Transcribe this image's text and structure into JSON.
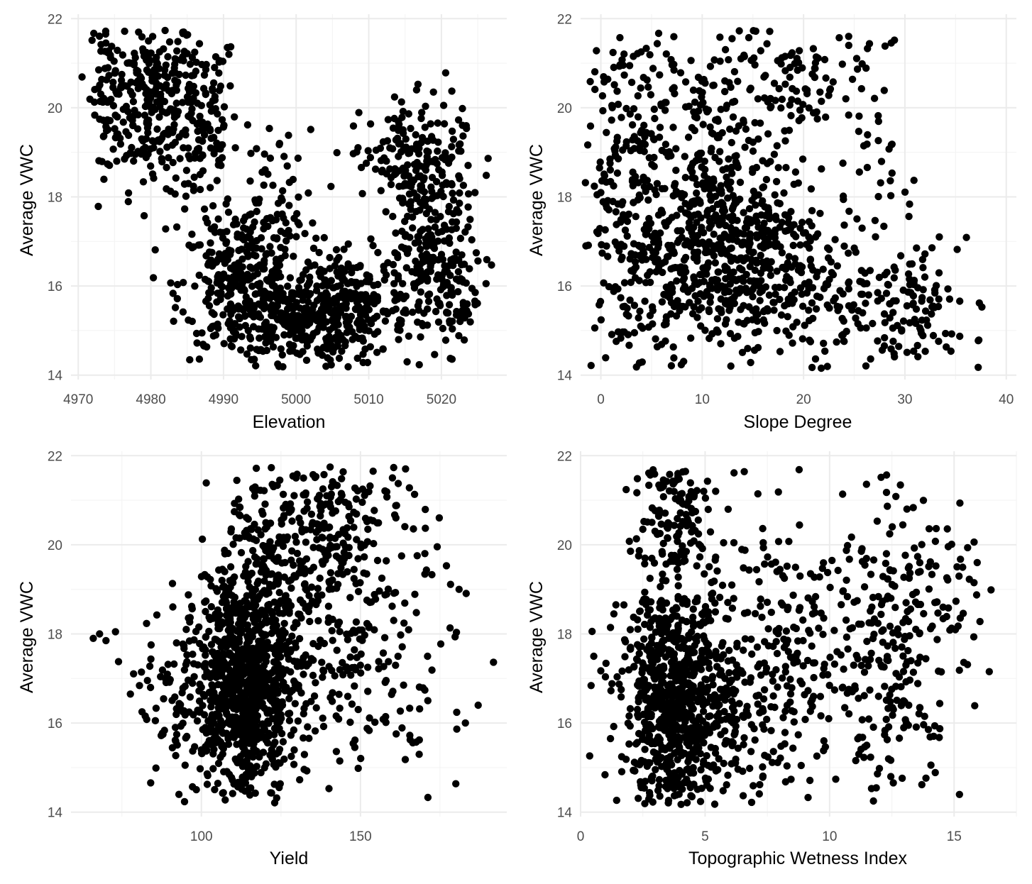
{
  "chart_data": [
    {
      "type": "scatter",
      "xlabel": "Elevation",
      "ylabel": "Average VWC",
      "xlim": [
        4969,
        5029
      ],
      "ylim": [
        13.9,
        22.1
      ],
      "xticks": [
        4970,
        4980,
        4990,
        5000,
        5010,
        5020
      ],
      "yticks": [
        14,
        16,
        18,
        20,
        22
      ],
      "grid": true,
      "point_color": "#000000",
      "clusters": [
        {
          "cx": 4980,
          "cy": 20.2,
          "sx": 3,
          "sy": 1.0,
          "n": 240
        },
        {
          "cx": 4974,
          "cy": 20.5,
          "sx": 1.2,
          "sy": 0.8,
          "n": 60
        },
        {
          "cx": 4987,
          "cy": 19.5,
          "sx": 2.5,
          "sy": 1.2,
          "n": 140
        },
        {
          "cx": 4992,
          "cy": 16.0,
          "sx": 4,
          "sy": 0.8,
          "n": 260
        },
        {
          "cx": 5000,
          "cy": 15.3,
          "sx": 4,
          "sy": 0.5,
          "n": 260
        },
        {
          "cx": 5008,
          "cy": 15.5,
          "sx": 3.5,
          "sy": 0.6,
          "n": 200
        },
        {
          "cx": 5018,
          "cy": 17.0,
          "sx": 3,
          "sy": 1.3,
          "n": 260
        },
        {
          "cx": 5015,
          "cy": 19.0,
          "sx": 4,
          "sy": 0.5,
          "n": 120
        },
        {
          "cx": 4996,
          "cy": 17.5,
          "sx": 3,
          "sy": 1.0,
          "n": 100
        },
        {
          "cx": 5022,
          "cy": 15.8,
          "sx": 1.5,
          "sy": 0.6,
          "n": 60
        }
      ]
    },
    {
      "type": "scatter",
      "xlabel": "Slope Degree",
      "ylabel": "Average VWC",
      "xlim": [
        -2,
        41
      ],
      "ylim": [
        13.9,
        22.1
      ],
      "xticks": [
        0,
        10,
        20,
        30,
        40
      ],
      "yticks": [
        14,
        16,
        18,
        20,
        22
      ],
      "grid": true,
      "point_color": "#000000",
      "clusters": [
        {
          "cx": 12,
          "cy": 16.8,
          "sx": 5,
          "sy": 1.2,
          "n": 700
        },
        {
          "cx": 3,
          "cy": 18.0,
          "sx": 2.5,
          "sy": 2.2,
          "n": 200
        },
        {
          "cx": 10,
          "cy": 20.0,
          "sx": 6,
          "sy": 0.9,
          "n": 150
        },
        {
          "cx": 20,
          "cy": 20.8,
          "sx": 5,
          "sy": 0.8,
          "n": 100
        },
        {
          "cx": 26,
          "cy": 15.3,
          "sx": 5,
          "sy": 0.8,
          "n": 120
        },
        {
          "cx": 32,
          "cy": 15.8,
          "sx": 3,
          "sy": 0.8,
          "n": 60
        },
        {
          "cx": 27,
          "cy": 19.0,
          "sx": 1.5,
          "sy": 1.5,
          "n": 40
        }
      ]
    },
    {
      "type": "scatter",
      "xlabel": "Yield",
      "ylabel": "Average VWC",
      "xlim": [
        59,
        196
      ],
      "ylim": [
        13.9,
        22.1
      ],
      "xticks": [
        100,
        150
      ],
      "yticks": [
        14,
        16,
        18,
        20,
        22
      ],
      "grid": true,
      "point_color": "#000000",
      "clusters": [
        {
          "cx": 114,
          "cy": 16.8,
          "sx": 8,
          "sy": 1.3,
          "n": 900
        },
        {
          "cx": 120,
          "cy": 19.5,
          "sx": 10,
          "sy": 1.2,
          "n": 220
        },
        {
          "cx": 145,
          "cy": 20.5,
          "sx": 12,
          "sy": 1.0,
          "n": 160
        },
        {
          "cx": 145,
          "cy": 18.0,
          "sx": 12,
          "sy": 1.5,
          "n": 180
        },
        {
          "cx": 92,
          "cy": 16.5,
          "sx": 6,
          "sy": 1.0,
          "n": 80
        },
        {
          "cx": 170,
          "cy": 17.5,
          "sx": 8,
          "sy": 1.8,
          "n": 40
        }
      ],
      "extra_points": [
        [
          66,
          17.9
        ],
        [
          68,
          18.0
        ],
        [
          70,
          17.85
        ],
        [
          73,
          18.05
        ],
        [
          187,
          16.4
        ],
        [
          183,
          16.0
        ],
        [
          181,
          19.0
        ]
      ]
    },
    {
      "type": "scatter",
      "xlabel": "Topographic Wetness Index",
      "ylabel": "Average VWC",
      "xlim": [
        0,
        17.5
      ],
      "ylim": [
        13.9,
        22.1
      ],
      "xticks": [
        0,
        5,
        10,
        15
      ],
      "yticks": [
        14,
        16,
        18,
        20,
        22
      ],
      "grid": true,
      "point_color": "#000000",
      "clusters": [
        {
          "cx": 3.8,
          "cy": 16.5,
          "sx": 1.1,
          "sy": 1.3,
          "n": 800
        },
        {
          "cx": 3.6,
          "cy": 20.8,
          "sx": 0.9,
          "sy": 0.7,
          "n": 120
        },
        {
          "cx": 9.0,
          "cy": 18.0,
          "sx": 2.5,
          "sy": 1.8,
          "n": 260
        },
        {
          "cx": 12.5,
          "cy": 17.5,
          "sx": 1.5,
          "sy": 1.7,
          "n": 200
        },
        {
          "cx": 6.5,
          "cy": 16.0,
          "sx": 1.5,
          "sy": 1.0,
          "n": 120
        },
        {
          "cx": 15.0,
          "cy": 19.0,
          "sx": 0.6,
          "sy": 0.8,
          "n": 25
        }
      ]
    }
  ]
}
